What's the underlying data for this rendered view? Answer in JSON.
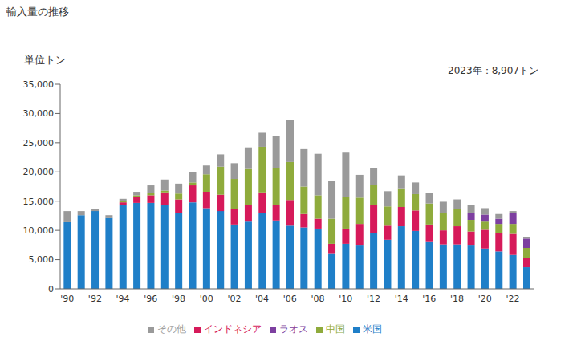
{
  "chart_data": {
    "type": "bar",
    "title": "輸入量の推移",
    "y_label": "単位トン",
    "annotation": "2023年：8,907トン",
    "stacked": true,
    "grid": false,
    "legend": "bottom",
    "categories": [
      "'90",
      null,
      "'92",
      null,
      "'94",
      null,
      "'96",
      null,
      "'98",
      null,
      "'00",
      null,
      "'02",
      null,
      "'04",
      null,
      "'06",
      null,
      "'08",
      null,
      "'10",
      null,
      "'12",
      null,
      "'14",
      null,
      "'16",
      null,
      "'18",
      null,
      "'20",
      null,
      "'22",
      null
    ],
    "series": [
      {
        "name": "米国",
        "color": "#1f7fc8",
        "values": [
          11400,
          12600,
          13300,
          12100,
          14400,
          14700,
          14700,
          14400,
          13000,
          14800,
          13800,
          13300,
          11000,
          11500,
          13000,
          11700,
          10800,
          10500,
          10300,
          6100,
          7700,
          7400,
          9500,
          8400,
          10700,
          9900,
          8000,
          7600,
          7600,
          7400,
          6900,
          6400,
          5800,
          3700
        ]
      },
      {
        "name": "インドネシア",
        "color": "#d61a5a",
        "values": [
          0,
          0,
          0,
          0,
          400,
          1000,
          1300,
          2100,
          2300,
          2900,
          2800,
          2800,
          2700,
          2900,
          3500,
          2700,
          4400,
          2300,
          1700,
          1600,
          2600,
          3700,
          4900,
          2400,
          3300,
          3500,
          3000,
          2400,
          3100,
          2400,
          3200,
          3100,
          3600,
          1600
        ]
      },
      {
        "name": "中国",
        "color": "#8fab3c",
        "values": [
          0,
          0,
          0,
          0,
          200,
          300,
          400,
          300,
          1000,
          500,
          3000,
          4800,
          5100,
          6100,
          7800,
          6200,
          6500,
          4700,
          4000,
          4300,
          5400,
          4500,
          3400,
          3300,
          3200,
          2800,
          3600,
          3000,
          2900,
          2000,
          1400,
          1600,
          1700,
          1700
        ]
      },
      {
        "name": "ラオス",
        "color": "#7d3fa0",
        "values": [
          0,
          0,
          0,
          0,
          0,
          0,
          0,
          0,
          0,
          0,
          0,
          0,
          0,
          0,
          0,
          0,
          0,
          0,
          0,
          0,
          0,
          0,
          0,
          0,
          0,
          0,
          0,
          0,
          0,
          1200,
          1200,
          900,
          1800,
          1600
        ]
      },
      {
        "name": "その他",
        "color": "#9a9a9a",
        "values": [
          1900,
          700,
          400,
          500,
          400,
          600,
          1300,
          1900,
          1700,
          1800,
          1500,
          2100,
          2700,
          3700,
          2400,
          5600,
          7200,
          6400,
          7100,
          6400,
          7600,
          3900,
          2800,
          2600,
          2200,
          2000,
          1800,
          1900,
          1700,
          1400,
          1100,
          800,
          400,
          300
        ]
      }
    ],
    "ylim": [
      0,
      35000
    ],
    "yticks": [
      0,
      {
        "value": 5000,
        "label": "5,000"
      },
      {
        "value": 10000,
        "label": "10,000"
      },
      {
        "value": 15000,
        "label": "15,000"
      },
      {
        "value": 20000,
        "label": "20,000"
      },
      {
        "value": 25000,
        "label": "25,000"
      },
      {
        "value": 30000,
        "label": "30,000"
      },
      {
        "value": 35000,
        "label": "35,000"
      }
    ]
  }
}
